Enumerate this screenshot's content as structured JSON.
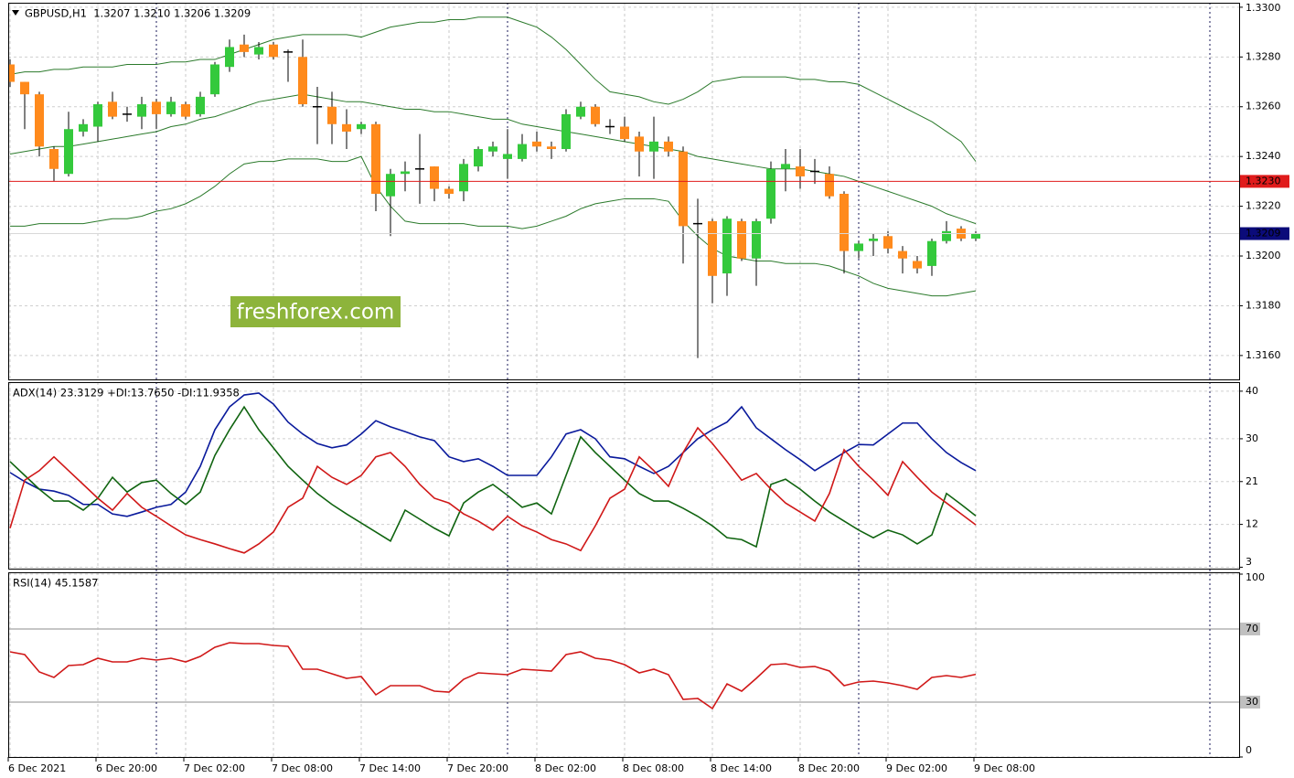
{
  "chart_data": [
    {
      "type": "candlestick",
      "title": "GBPUSD,H1  1.3207 1.3210 1.3206 1.3209",
      "watermark": "freshforex.com",
      "categories": [
        "6 Dec 2021",
        null,
        null,
        null,
        null,
        null,
        "6 Dec 20:00",
        null,
        null,
        null,
        null,
        null,
        "7 Dec 02:00",
        null,
        null,
        null,
        null,
        null,
        "7 Dec 08:00",
        null,
        null,
        null,
        null,
        null,
        "7 Dec 14:00",
        null,
        null,
        null,
        null,
        null,
        "7 Dec 20:00",
        null,
        null,
        null,
        null,
        null,
        "8 Dec 02:00",
        null,
        null,
        null,
        null,
        null,
        "8 Dec 08:00",
        null,
        null,
        null,
        null,
        null,
        "8 Dec 14:00",
        null,
        null,
        null,
        null,
        null,
        "8 Dec 20:00",
        null,
        null,
        null,
        null,
        null,
        "9 Dec 02:00",
        null,
        null,
        null,
        null,
        null,
        "9 Dec 08:00"
      ],
      "open": [
        1.3277,
        1.327,
        1.3265,
        1.3243,
        1.3233,
        1.325,
        1.3252,
        1.3262,
        1.3257,
        1.3256,
        1.3262,
        1.3257,
        1.3261,
        1.3257,
        1.3265,
        1.3276,
        1.3285,
        1.3281,
        1.3285,
        1.3282,
        1.328,
        1.326,
        1.326,
        1.3253,
        1.3251,
        1.3253,
        1.3224,
        1.3233,
        1.3235,
        1.3236,
        1.3227,
        1.3226,
        1.3236,
        1.3242,
        1.3239,
        1.3239,
        1.3246,
        1.3244,
        1.3243,
        1.3256,
        1.326,
        1.3252,
        1.3252,
        1.3248,
        1.3242,
        1.3246,
        1.3242,
        1.3213,
        1.3214,
        1.3193,
        1.3214,
        1.3199,
        1.3215,
        1.3235,
        1.3236,
        1.3234,
        1.3233,
        1.3225,
        1.3202,
        1.3206,
        1.3208,
        1.3202,
        1.3198,
        1.3196,
        1.3206,
        1.3211,
        1.3207
      ],
      "high": [
        1.3279,
        1.327,
        1.3266,
        1.3244,
        1.3258,
        1.3255,
        1.3262,
        1.3266,
        1.326,
        1.3264,
        1.3263,
        1.3264,
        1.3262,
        1.3266,
        1.3278,
        1.3287,
        1.3289,
        1.3286,
        1.3286,
        1.3283,
        1.3287,
        1.3268,
        1.3266,
        1.3259,
        1.3254,
        1.3254,
        1.3235,
        1.3238,
        1.3249,
        1.3236,
        1.3228,
        1.3239,
        1.3244,
        1.3246,
        1.3251,
        1.3249,
        1.325,
        1.3246,
        1.3259,
        1.3262,
        1.3261,
        1.3255,
        1.3256,
        1.325,
        1.3256,
        1.3248,
        1.3244,
        1.3223,
        1.3215,
        1.3216,
        1.3215,
        1.3215,
        1.3238,
        1.3243,
        1.3243,
        1.3239,
        1.3236,
        1.3226,
        1.3206,
        1.3209,
        1.321,
        1.3204,
        1.32,
        1.3207,
        1.3214,
        1.3212,
        1.321
      ],
      "low": [
        1.3268,
        1.3251,
        1.324,
        1.323,
        1.3232,
        1.3248,
        1.3246,
        1.3255,
        1.3254,
        1.3251,
        1.3251,
        1.3256,
        1.3255,
        1.3256,
        1.3264,
        1.3274,
        1.328,
        1.3279,
        1.3279,
        1.327,
        1.326,
        1.3245,
        1.3245,
        1.3243,
        1.3249,
        1.3218,
        1.3208,
        1.3226,
        1.3221,
        1.3222,
        1.3223,
        1.3222,
        1.3234,
        1.324,
        1.3231,
        1.3238,
        1.3242,
        1.3239,
        1.3242,
        1.3255,
        1.3252,
        1.3249,
        1.3246,
        1.3232,
        1.3231,
        1.324,
        1.3197,
        1.3159,
        1.3181,
        1.3184,
        1.3198,
        1.3188,
        1.3213,
        1.3226,
        1.3227,
        1.3229,
        1.3223,
        1.3193,
        1.3199,
        1.32,
        1.3201,
        1.3193,
        1.3193,
        1.3192,
        1.3205,
        1.3206,
        1.3206
      ],
      "close": [
        1.327,
        1.3265,
        1.3244,
        1.3235,
        1.3251,
        1.3253,
        1.3261,
        1.3256,
        1.3257,
        1.3261,
        1.3257,
        1.3262,
        1.3256,
        1.3264,
        1.3277,
        1.3284,
        1.3282,
        1.3284,
        1.328,
        1.3282,
        1.3261,
        1.326,
        1.3253,
        1.325,
        1.3253,
        1.3225,
        1.3233,
        1.3234,
        1.3235,
        1.3227,
        1.3225,
        1.3237,
        1.3243,
        1.3244,
        1.3241,
        1.3245,
        1.3244,
        1.3243,
        1.3257,
        1.326,
        1.3253,
        1.3252,
        1.3247,
        1.3242,
        1.3246,
        1.3242,
        1.3212,
        1.3213,
        1.3192,
        1.3215,
        1.3199,
        1.3214,
        1.3235,
        1.3237,
        1.3232,
        1.3234,
        1.3224,
        1.3202,
        1.3205,
        1.3207,
        1.3203,
        1.3199,
        1.3195,
        1.3206,
        1.321,
        1.3207,
        1.3209
      ],
      "up_color": "#34c93c",
      "down_color": "#ff8a1c",
      "series": [
        {
          "color": "#2b7a2b",
          "values": [
            1.3273,
            1.3274,
            1.3274,
            1.3275,
            1.3275,
            1.3276,
            1.3276,
            1.3276,
            1.3277,
            1.3277,
            1.3277,
            1.3278,
            1.3278,
            1.3279,
            1.3279,
            1.3281,
            1.3283,
            1.3285,
            1.3287,
            1.3288,
            1.3289,
            1.3289,
            1.3289,
            1.3289,
            1.3288,
            1.329,
            1.3292,
            1.3293,
            1.3294,
            1.3294,
            1.3295,
            1.3295,
            1.3296,
            1.3296,
            1.3296,
            1.3294,
            1.3292,
            1.3288,
            1.3283,
            1.3277,
            1.3271,
            1.3266,
            1.3265,
            1.3264,
            1.3262,
            1.3261,
            1.3263,
            1.3266,
            1.327,
            1.3271,
            1.3272,
            1.3272,
            1.3272,
            1.3272,
            1.3271,
            1.3271,
            1.327,
            1.327,
            1.3269,
            1.3266,
            1.3263,
            1.326,
            1.3257,
            1.3254,
            1.325,
            1.3246,
            1.3238
          ]
        },
        {
          "color": "#2b7a2b",
          "values": [
            1.3241,
            1.3242,
            1.3243,
            1.3244,
            1.3244,
            1.3245,
            1.3246,
            1.3247,
            1.3248,
            1.3249,
            1.325,
            1.3252,
            1.3253,
            1.3255,
            1.3256,
            1.3258,
            1.326,
            1.3262,
            1.3263,
            1.3264,
            1.3265,
            1.3264,
            1.3263,
            1.3262,
            1.3262,
            1.3261,
            1.326,
            1.3259,
            1.3259,
            1.3258,
            1.3258,
            1.3257,
            1.3256,
            1.3255,
            1.3255,
            1.3253,
            1.3252,
            1.3251,
            1.325,
            1.3249,
            1.3248,
            1.3247,
            1.3246,
            1.3245,
            1.3244,
            1.3243,
            1.3242,
            1.324,
            1.3239,
            1.3238,
            1.3237,
            1.3236,
            1.3235,
            1.3235,
            1.3235,
            1.3234,
            1.3233,
            1.3232,
            1.323,
            1.3228,
            1.3226,
            1.3224,
            1.3222,
            1.322,
            1.3217,
            1.3215,
            1.3213
          ]
        },
        {
          "color": "#2b7a2b",
          "values": [
            1.3212,
            1.3212,
            1.3213,
            1.3213,
            1.3213,
            1.3213,
            1.3214,
            1.3215,
            1.3215,
            1.3216,
            1.3218,
            1.3219,
            1.3221,
            1.3224,
            1.3228,
            1.3233,
            1.3237,
            1.3238,
            1.3238,
            1.3239,
            1.3239,
            1.3239,
            1.3238,
            1.3238,
            1.324,
            1.3228,
            1.322,
            1.3214,
            1.3213,
            1.3213,
            1.3213,
            1.3213,
            1.3212,
            1.3212,
            1.3212,
            1.3211,
            1.3212,
            1.3214,
            1.3216,
            1.3219,
            1.3221,
            1.3222,
            1.3223,
            1.3223,
            1.3223,
            1.3222,
            1.3214,
            1.3208,
            1.3203,
            1.32,
            1.3199,
            1.3198,
            1.3198,
            1.3197,
            1.3197,
            1.3197,
            1.3196,
            1.3194,
            1.3192,
            1.3189,
            1.3187,
            1.3186,
            1.3185,
            1.3184,
            1.3184,
            1.3185,
            1.3186
          ]
        }
      ],
      "ylim": [
        1.31504,
        1.33018
      ],
      "yticks": [
        {
          "value": 1.33,
          "label": "1.3300"
        },
        {
          "value": 1.328,
          "label": "1.3280"
        },
        {
          "value": 1.326,
          "label": "1.3260"
        },
        {
          "value": 1.324,
          "label": "1.3240"
        },
        {
          "value": 1.322,
          "label": "1.3220"
        },
        {
          "value": 1.32,
          "label": "1.3200"
        },
        {
          "value": 1.318,
          "label": "1.3180"
        },
        {
          "value": 1.316,
          "label": "1.3160"
        }
      ],
      "hline": {
        "value": 1.323,
        "label": "1.3230",
        "color": "#e01b1b"
      },
      "current_price": {
        "value": 1.3209,
        "label": "1.3209",
        "color": "#0b0b7a"
      },
      "grid": true
    },
    {
      "type": "line",
      "title": "ADX(14) 23.3129 +DI:13.7650 -DI:11.9358",
      "series": [
        {
          "color": "#0a1a9c",
          "values": [
            22.9,
            21.0,
            19.4,
            19.0,
            18.1,
            16.2,
            16.2,
            14.2,
            13.7,
            14.6,
            15.6,
            16.2,
            18.8,
            24.2,
            31.9,
            36.7,
            39.2,
            39.6,
            37.3,
            33.5,
            31.0,
            29.0,
            28.1,
            28.7,
            31.0,
            33.8,
            32.5,
            31.5,
            30.4,
            29.6,
            26.2,
            25.2,
            25.8,
            24.2,
            22.3,
            22.3,
            22.3,
            26.2,
            31.0,
            31.9,
            30.0,
            26.2,
            25.8,
            24.2,
            22.7,
            24.2,
            27.1,
            30.0,
            31.9,
            33.5,
            36.7,
            32.3,
            30.0,
            27.7,
            25.6,
            23.3,
            25.2,
            27.1,
            28.8,
            28.7,
            31.0,
            33.3,
            33.3,
            30.0,
            27.1,
            25.0,
            23.3
          ]
        },
        {
          "color": "#106410",
          "values": [
            25.2,
            22.3,
            19.4,
            16.9,
            16.9,
            15.0,
            17.5,
            21.9,
            18.8,
            20.8,
            21.3,
            18.5,
            16.2,
            18.8,
            26.5,
            31.9,
            36.7,
            31.9,
            28.1,
            24.2,
            21.3,
            18.5,
            16.2,
            14.2,
            12.3,
            10.4,
            8.5,
            15.0,
            13.1,
            11.2,
            9.6,
            16.5,
            18.8,
            20.4,
            18.1,
            15.6,
            16.5,
            14.2,
            22.3,
            30.4,
            27.1,
            24.2,
            21.3,
            18.5,
            16.9,
            16.9,
            15.4,
            13.7,
            11.7,
            9.2,
            8.8,
            7.3,
            20.4,
            21.5,
            19.4,
            16.9,
            14.6,
            12.7,
            10.8,
            9.2,
            10.8,
            9.8,
            7.9,
            9.8,
            18.5,
            16.2,
            13.8
          ]
        },
        {
          "color": "#d01818",
          "values": [
            11.2,
            21.3,
            23.3,
            26.2,
            23.3,
            20.4,
            17.5,
            15.0,
            18.5,
            15.6,
            13.7,
            11.7,
            9.8,
            8.8,
            7.9,
            6.9,
            6.0,
            7.9,
            10.4,
            15.6,
            17.5,
            24.2,
            21.9,
            20.4,
            22.3,
            26.2,
            27.1,
            24.2,
            20.4,
            17.5,
            16.5,
            14.2,
            12.7,
            10.8,
            13.7,
            11.7,
            10.4,
            8.8,
            7.9,
            6.5,
            11.7,
            17.5,
            19.4,
            26.2,
            23.3,
            20.0,
            27.1,
            32.3,
            29.0,
            25.2,
            21.3,
            22.7,
            19.4,
            16.5,
            14.6,
            12.7,
            18.5,
            27.7,
            24.2,
            21.3,
            18.1,
            25.2,
            21.9,
            18.8,
            16.5,
            14.2,
            11.9
          ]
        }
      ],
      "ylim": [
        2.7,
        41.9
      ],
      "yticks": [
        40,
        30,
        21,
        12,
        3
      ],
      "grid": true
    },
    {
      "type": "line",
      "title": "RSI(14) 45.1587",
      "series": [
        {
          "color": "#d01818",
          "values": [
            57.5,
            56,
            46.5,
            43.5,
            50,
            50.5,
            54,
            52,
            52,
            54,
            53,
            54,
            52,
            55,
            60,
            62.5,
            62,
            62,
            61,
            60.5,
            48,
            48,
            45.5,
            43,
            44,
            34,
            39,
            39,
            39,
            36,
            35.5,
            42.5,
            46,
            45.5,
            45,
            48,
            47.5,
            47,
            56,
            57.5,
            54,
            53,
            50.5,
            46,
            48,
            45,
            31.5,
            32,
            26.5,
            40,
            36,
            43,
            50.5,
            51,
            49,
            49.5,
            47,
            39,
            41,
            41.5,
            40.5,
            39,
            37,
            43.5,
            44.5,
            43.5,
            45.2
          ]
        }
      ],
      "ylim": [
        0,
        101
      ],
      "yticks": [
        100,
        70,
        30,
        0
      ],
      "levels": [
        70,
        30
      ],
      "grid": true
    }
  ]
}
